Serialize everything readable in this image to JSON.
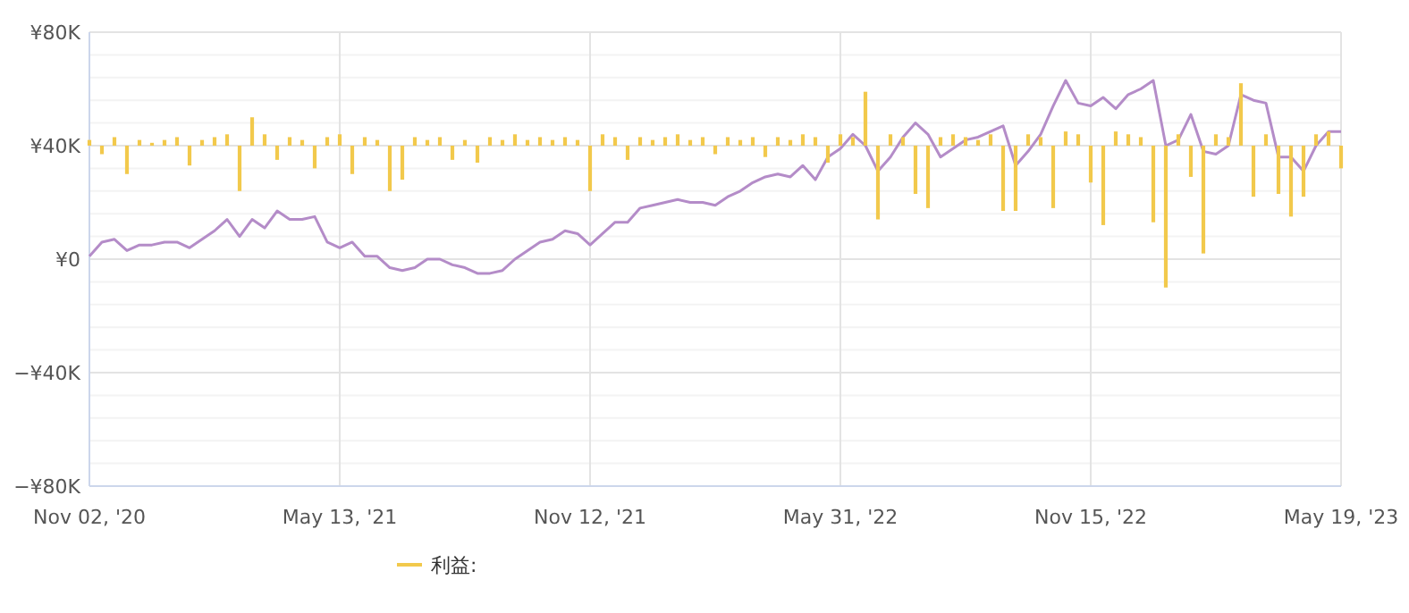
{
  "chart_data": {
    "type": "bar",
    "categories": [
      "Nov 02, '20",
      null,
      null,
      null,
      null,
      null,
      null,
      null,
      null,
      null,
      null,
      null,
      null,
      null,
      null,
      null,
      null,
      null,
      null,
      null,
      "May 13, '21",
      null,
      null,
      null,
      null,
      null,
      null,
      null,
      null,
      null,
      null,
      null,
      null,
      null,
      null,
      null,
      null,
      null,
      null,
      null,
      "Nov 12, '21",
      null,
      null,
      null,
      null,
      null,
      null,
      null,
      null,
      null,
      null,
      null,
      null,
      null,
      null,
      null,
      null,
      null,
      null,
      null,
      "May 31, '22",
      null,
      null,
      null,
      null,
      null,
      null,
      null,
      null,
      null,
      null,
      null,
      null,
      null,
      null,
      null,
      null,
      null,
      null,
      null,
      "Nov 15, '22",
      null,
      null,
      null,
      null,
      null,
      null,
      null,
      null,
      null,
      null,
      null,
      null,
      null,
      null,
      null,
      null,
      null,
      null,
      null,
      "May 19, '23"
    ],
    "series": [
      {
        "name": "利益:",
        "type": "bar",
        "color": "#f2c94c",
        "base": [
          40000,
          40000,
          40000,
          40000,
          40000,
          40000,
          40000,
          40000,
          40000,
          40000,
          40000,
          40000,
          40000,
          40000,
          40000,
          40000,
          40000,
          40000,
          40000,
          40000,
          40000,
          40000,
          40000,
          40000,
          40000,
          40000,
          40000,
          40000,
          40000,
          40000,
          40000,
          40000,
          40000,
          40000,
          40000,
          40000,
          40000,
          40000,
          40000,
          40000,
          40000,
          40000,
          40000,
          40000,
          40000,
          40000,
          40000,
          40000,
          40000,
          40000,
          40000,
          40000,
          40000,
          40000,
          40000,
          40000,
          40000,
          40000,
          40000,
          40000,
          40000,
          40000,
          40000,
          40000,
          40000,
          40000,
          40000,
          40000,
          40000,
          40000,
          40000,
          40000,
          40000,
          40000,
          40000,
          40000,
          40000,
          40000,
          40000,
          40000,
          40000,
          40000,
          40000,
          40000,
          40000,
          40000,
          40000,
          40000,
          40000,
          40000,
          40000,
          40000,
          40000,
          40000,
          40000,
          40000,
          40000,
          40000,
          40000,
          40000,
          40000
        ],
        "values": [
          2000,
          -3000,
          3000,
          -10000,
          2000,
          1000,
          2000,
          3000,
          -7000,
          2000,
          3000,
          4000,
          -16000,
          10000,
          4000,
          -5000,
          3000,
          2000,
          -8000,
          3000,
          4000,
          -10000,
          3000,
          2000,
          -16000,
          -12000,
          3000,
          2000,
          3000,
          -5000,
          2000,
          -6000,
          3000,
          2000,
          4000,
          2000,
          3000,
          2000,
          3000,
          2000,
          -16000,
          4000,
          3000,
          -5000,
          3000,
          2000,
          3000,
          4000,
          2000,
          3000,
          -3000,
          3000,
          2000,
          3000,
          -4000,
          3000,
          2000,
          4000,
          3000,
          -6000,
          4000,
          3000,
          19000,
          -26000,
          4000,
          3000,
          -17000,
          -22000,
          3000,
          4000,
          3000,
          2000,
          4000,
          -23000,
          -23000,
          4000,
          3000,
          -22000,
          5000,
          4000,
          -13000,
          -28000,
          5000,
          4000,
          3000,
          -27000,
          -50000,
          4000,
          -11000,
          -38000,
          4000,
          3000,
          22000,
          -18000,
          4000,
          -17000,
          -25000,
          -18000,
          4000,
          5000,
          -8000
        ]
      },
      {
        "type": "line",
        "color": "#b48cc8",
        "values": [
          1000,
          6000,
          7000,
          3000,
          5000,
          5000,
          6000,
          6000,
          4000,
          7000,
          10000,
          14000,
          8000,
          14000,
          11000,
          17000,
          14000,
          14000,
          15000,
          6000,
          4000,
          6000,
          1000,
          1000,
          -3000,
          -4000,
          -3000,
          0,
          0,
          -2000,
          -3000,
          -5000,
          -5000,
          -4000,
          0,
          3000,
          6000,
          7000,
          10000,
          9000,
          5000,
          9000,
          13000,
          13000,
          18000,
          19000,
          20000,
          21000,
          20000,
          20000,
          19000,
          22000,
          24000,
          27000,
          29000,
          30000,
          29000,
          33000,
          28000,
          36000,
          39000,
          44000,
          40000,
          31000,
          36000,
          43000,
          48000,
          44000,
          36000,
          39000,
          42000,
          43000,
          45000,
          47000,
          33000,
          38000,
          44000,
          54000,
          63000,
          55000,
          54000,
          57000,
          53000,
          58000,
          60000,
          63000,
          40000,
          42000,
          51000,
          38000,
          37000,
          40000,
          58000,
          56000,
          55000,
          36000,
          36000,
          31000,
          40000,
          45000,
          45000
        ]
      }
    ],
    "ylim": [
      -80000,
      80000
    ],
    "yticks": [
      {
        "value": -80000,
        "label": "−¥80K"
      },
      {
        "value": -72000,
        "label": null
      },
      {
        "value": -64000,
        "label": null
      },
      {
        "value": -56000,
        "label": null
      },
      {
        "value": -48000,
        "label": null
      },
      {
        "value": -40000,
        "label": "−¥40K"
      },
      {
        "value": -32000,
        "label": null
      },
      {
        "value": -24000,
        "label": null
      },
      {
        "value": -16000,
        "label": null
      },
      {
        "value": -8000,
        "label": null
      },
      {
        "value": 0,
        "label": "¥0"
      },
      {
        "value": 8000,
        "label": null
      },
      {
        "value": 16000,
        "label": null
      },
      {
        "value": 24000,
        "label": null
      },
      {
        "value": 32000,
        "label": null
      },
      {
        "value": 40000,
        "label": "¥40K"
      },
      {
        "value": 48000,
        "label": null
      },
      {
        "value": 56000,
        "label": null
      },
      {
        "value": 64000,
        "label": null
      },
      {
        "value": 72000,
        "label": null
      },
      {
        "value": 80000,
        "label": "¥80K"
      }
    ],
    "grid": true,
    "legend": "bottom"
  }
}
